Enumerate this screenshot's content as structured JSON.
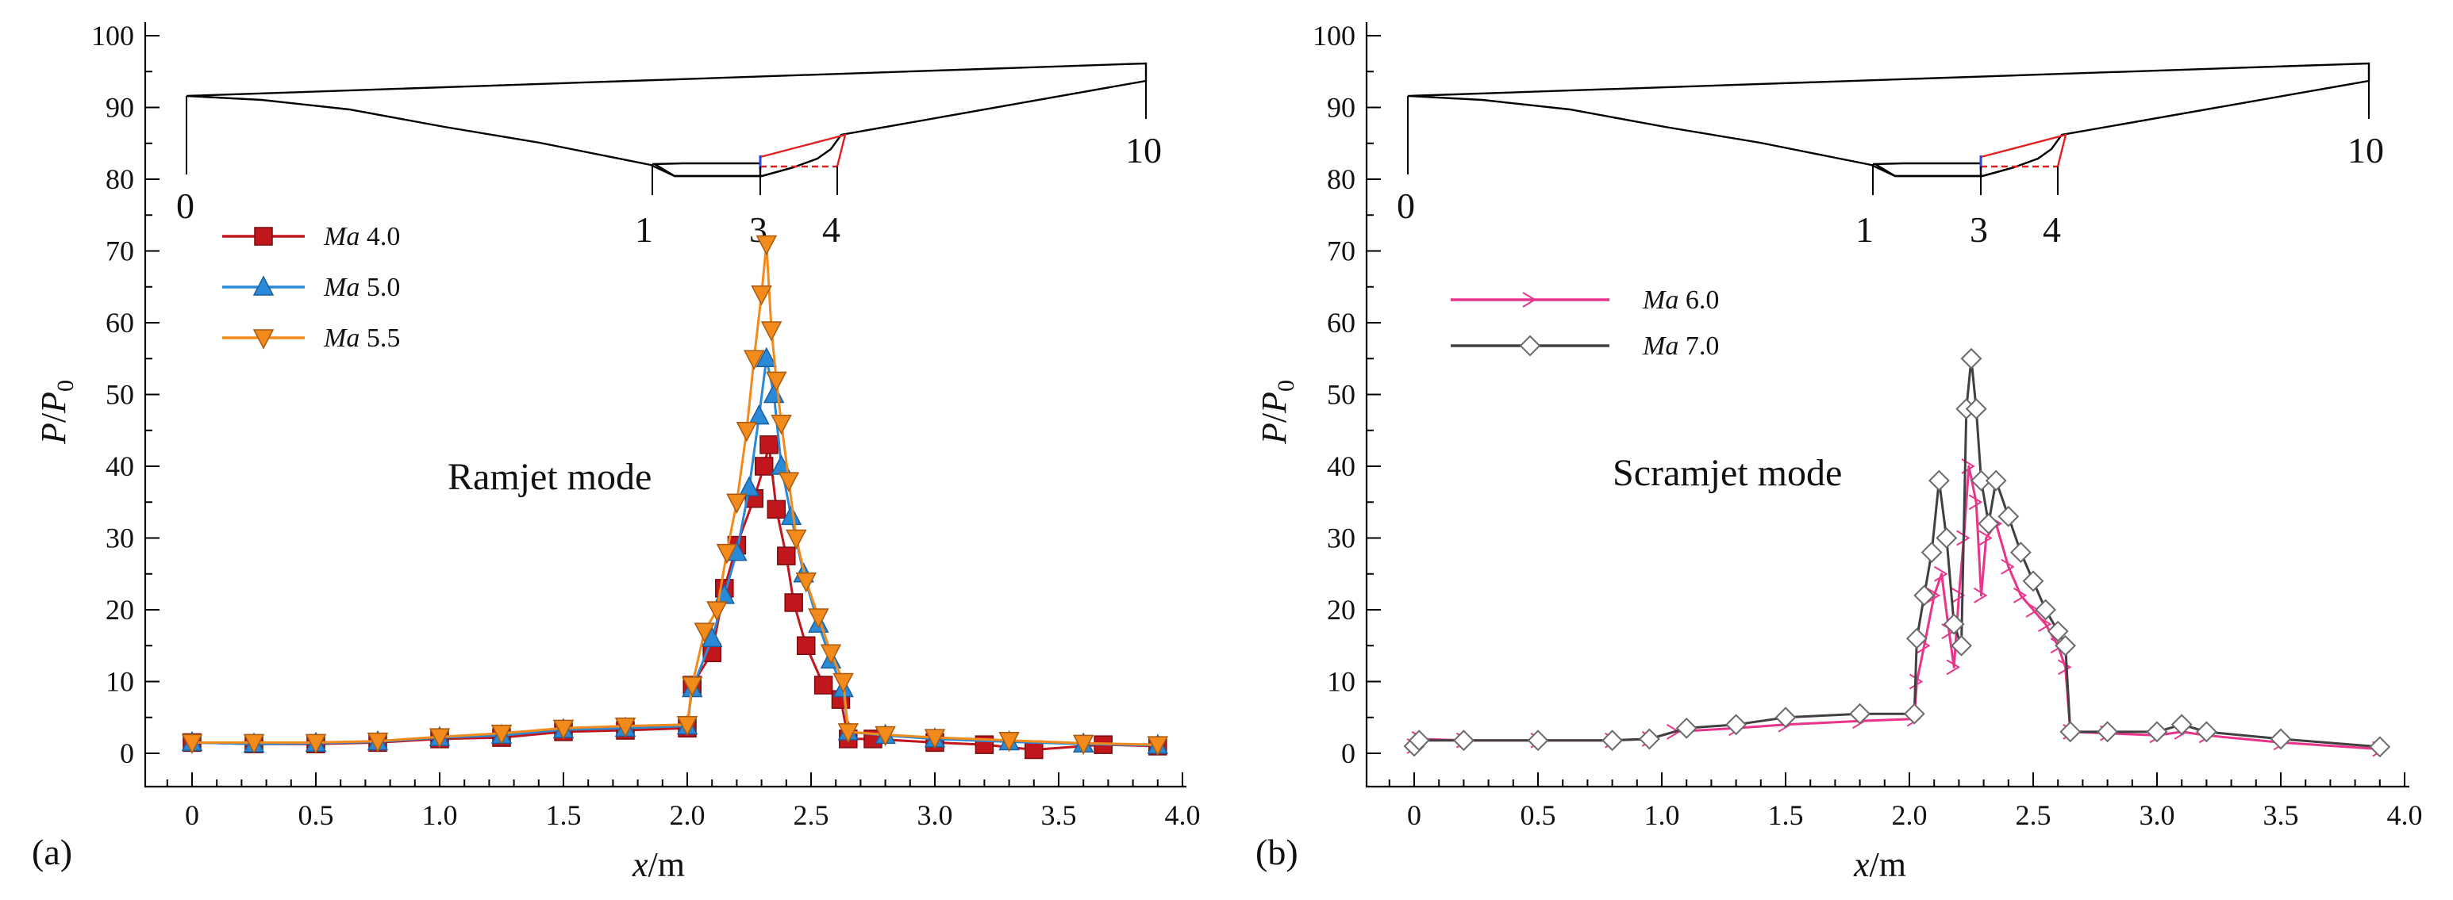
{
  "figure": {
    "panels": [
      {
        "panel_label": "(a)",
        "mode_label": "Ramjet mode",
        "xlabel_italic": "x",
        "xlabel_rest": "/m",
        "ylabel_main": "P",
        "ylabel_sep": "/",
        "ylabel_den": "P",
        "ylabel_sub": "0",
        "station_labels": [
          "0",
          "1",
          "3",
          "4",
          "10"
        ]
      },
      {
        "panel_label": "(b)",
        "mode_label": "Scramjet mode",
        "xlabel_italic": "x",
        "xlabel_rest": "/m",
        "ylabel_main": "P",
        "ylabel_sep": "/",
        "ylabel_den": "P",
        "ylabel_sub": "0",
        "station_labels": [
          "0",
          "1",
          "3",
          "4",
          "10"
        ]
      }
    ]
  },
  "chart_data": [
    {
      "type": "line",
      "title": "",
      "xlabel": "x/m",
      "ylabel": "P/P0",
      "xlim": [
        -0.2,
        4.0
      ],
      "ylim": [
        -5,
        100
      ],
      "xticks": [
        "0",
        "0.5",
        "1.0",
        "1.5",
        "2.0",
        "2.5",
        "3.0",
        "3.5",
        "4.0"
      ],
      "xtick_values": [
        0,
        0.5,
        1.0,
        1.5,
        2.0,
        2.5,
        3.0,
        3.5,
        4.0
      ],
      "yticks": [
        "0",
        "10",
        "20",
        "30",
        "40",
        "50",
        "60",
        "70",
        "80",
        "90",
        "100"
      ],
      "ytick_values": [
        0,
        10,
        20,
        30,
        40,
        50,
        60,
        70,
        80,
        90,
        100
      ],
      "series": [
        {
          "name_prefix": "Ma",
          "name_value": "4.0",
          "color": "#c0161c",
          "marker": "square",
          "points": [
            [
              0,
              1.5
            ],
            [
              0.25,
              1.3
            ],
            [
              0.5,
              1.3
            ],
            [
              0.75,
              1.5
            ],
            [
              1.0,
              2
            ],
            [
              1.25,
              2.2
            ],
            [
              1.5,
              3
            ],
            [
              1.75,
              3.2
            ],
            [
              2.0,
              3.5
            ],
            [
              2.02,
              9.5
            ],
            [
              2.1,
              14
            ],
            [
              2.15,
              23
            ],
            [
              2.2,
              29
            ],
            [
              2.27,
              35.5
            ],
            [
              2.31,
              40
            ],
            [
              2.33,
              43
            ],
            [
              2.36,
              34
            ],
            [
              2.4,
              27.5
            ],
            [
              2.43,
              21
            ],
            [
              2.48,
              15
            ],
            [
              2.55,
              9.5
            ],
            [
              2.62,
              7.5
            ],
            [
              2.65,
              2
            ],
            [
              2.75,
              2
            ],
            [
              3.0,
              1.5
            ],
            [
              3.2,
              1.2
            ],
            [
              3.4,
              0.5
            ],
            [
              3.68,
              1.2
            ],
            [
              3.9,
              1
            ]
          ]
        },
        {
          "name_prefix": "Ma",
          "name_value": "5.0",
          "color": "#2a8ad8",
          "marker": "triangle-up",
          "points": [
            [
              0,
              1.5
            ],
            [
              0.25,
              1.3
            ],
            [
              0.5,
              1.4
            ],
            [
              0.75,
              1.6
            ],
            [
              1.0,
              2.2
            ],
            [
              1.25,
              2.5
            ],
            [
              1.5,
              3.3
            ],
            [
              1.75,
              3.5
            ],
            [
              2.0,
              3.8
            ],
            [
              2.02,
              9
            ],
            [
              2.1,
              16
            ],
            [
              2.15,
              22
            ],
            [
              2.2,
              28
            ],
            [
              2.25,
              37
            ],
            [
              2.29,
              47
            ],
            [
              2.32,
              55
            ],
            [
              2.35,
              50
            ],
            [
              2.38,
              40
            ],
            [
              2.42,
              33
            ],
            [
              2.47,
              25
            ],
            [
              2.53,
              18
            ],
            [
              2.58,
              13
            ],
            [
              2.63,
              9
            ],
            [
              2.65,
              3
            ],
            [
              2.8,
              2.5
            ],
            [
              3.0,
              2
            ],
            [
              3.3,
              1.6
            ],
            [
              3.6,
              1.3
            ],
            [
              3.9,
              1.1
            ]
          ]
        },
        {
          "name_prefix": "Ma",
          "name_value": "5.5",
          "color": "#f28a1c",
          "marker": "triangle-down",
          "points": [
            [
              0,
              1.5
            ],
            [
              0.25,
              1.5
            ],
            [
              0.5,
              1.5
            ],
            [
              0.75,
              1.7
            ],
            [
              1.0,
              2.3
            ],
            [
              1.25,
              2.8
            ],
            [
              1.5,
              3.5
            ],
            [
              1.75,
              3.8
            ],
            [
              2.0,
              4
            ],
            [
              2.02,
              9.5
            ],
            [
              2.07,
              17
            ],
            [
              2.12,
              20
            ],
            [
              2.16,
              28
            ],
            [
              2.2,
              35
            ],
            [
              2.24,
              45
            ],
            [
              2.27,
              55
            ],
            [
              2.3,
              64
            ],
            [
              2.32,
              71
            ],
            [
              2.34,
              59
            ],
            [
              2.36,
              52
            ],
            [
              2.38,
              46
            ],
            [
              2.41,
              38
            ],
            [
              2.44,
              30
            ],
            [
              2.48,
              24
            ],
            [
              2.53,
              19
            ],
            [
              2.58,
              14
            ],
            [
              2.63,
              10
            ],
            [
              2.65,
              3
            ],
            [
              2.8,
              2.6
            ],
            [
              3.0,
              2.2
            ],
            [
              3.3,
              1.8
            ],
            [
              3.6,
              1.4
            ],
            [
              3.9,
              1.2
            ]
          ]
        }
      ]
    },
    {
      "type": "line",
      "title": "",
      "xlabel": "x/m",
      "ylabel": "P/P0",
      "xlim": [
        -0.2,
        4.0
      ],
      "ylim": [
        -5,
        100
      ],
      "xticks": [
        "0",
        "0.5",
        "1.0",
        "1.5",
        "2.0",
        "2.5",
        "3.0",
        "3.5",
        "4.0"
      ],
      "xtick_values": [
        0,
        0.5,
        1.0,
        1.5,
        2.0,
        2.5,
        3.0,
        3.5,
        4.0
      ],
      "yticks": [
        "0",
        "10",
        "20",
        "30",
        "40",
        "50",
        "60",
        "70",
        "80",
        "90",
        "100"
      ],
      "ytick_values": [
        0,
        10,
        20,
        30,
        40,
        50,
        60,
        70,
        80,
        90,
        100
      ],
      "series": [
        {
          "name_prefix": "Ma",
          "name_value": "6.0",
          "color": "#e8348a",
          "marker": "arrow-right",
          "points": [
            [
              0,
              1
            ],
            [
              0.02,
              2
            ],
            [
              0.2,
              1.8
            ],
            [
              0.5,
              1.8
            ],
            [
              0.8,
              1.8
            ],
            [
              0.95,
              2
            ],
            [
              1.05,
              3
            ],
            [
              1.3,
              3.5
            ],
            [
              1.5,
              4
            ],
            [
              1.8,
              4.5
            ],
            [
              2.02,
              4.8
            ],
            [
              2.03,
              10
            ],
            [
              2.06,
              15
            ],
            [
              2.1,
              22
            ],
            [
              2.13,
              25
            ],
            [
              2.16,
              17
            ],
            [
              2.18,
              12
            ],
            [
              2.2,
              22
            ],
            [
              2.22,
              30
            ],
            [
              2.24,
              40
            ],
            [
              2.27,
              35
            ],
            [
              2.29,
              22
            ],
            [
              2.31,
              30
            ],
            [
              2.35,
              32
            ],
            [
              2.4,
              26
            ],
            [
              2.45,
              22
            ],
            [
              2.5,
              20
            ],
            [
              2.55,
              18
            ],
            [
              2.6,
              15
            ],
            [
              2.63,
              12
            ],
            [
              2.65,
              3
            ],
            [
              2.8,
              2.8
            ],
            [
              3.0,
              2.5
            ],
            [
              3.1,
              3
            ],
            [
              3.2,
              2.5
            ],
            [
              3.5,
              1.5
            ],
            [
              3.9,
              0.6
            ]
          ]
        },
        {
          "name_prefix": "Ma",
          "name_value": "7.0",
          "color": "#404040",
          "marker": "diamond",
          "points": [
            [
              0,
              1
            ],
            [
              0.02,
              1.8
            ],
            [
              0.2,
              1.8
            ],
            [
              0.5,
              1.8
            ],
            [
              0.8,
              1.8
            ],
            [
              0.95,
              2
            ],
            [
              1.1,
              3.5
            ],
            [
              1.3,
              4
            ],
            [
              1.5,
              5
            ],
            [
              1.8,
              5.5
            ],
            [
              2.02,
              5.5
            ],
            [
              2.03,
              16
            ],
            [
              2.06,
              22
            ],
            [
              2.09,
              28
            ],
            [
              2.12,
              38
            ],
            [
              2.15,
              30
            ],
            [
              2.18,
              18
            ],
            [
              2.21,
              15
            ],
            [
              2.23,
              48
            ],
            [
              2.25,
              55
            ],
            [
              2.27,
              48
            ],
            [
              2.29,
              38
            ],
            [
              2.32,
              32
            ],
            [
              2.35,
              38
            ],
            [
              2.4,
              33
            ],
            [
              2.45,
              28
            ],
            [
              2.5,
              24
            ],
            [
              2.55,
              20
            ],
            [
              2.6,
              17
            ],
            [
              2.63,
              15
            ],
            [
              2.65,
              3
            ],
            [
              2.8,
              3
            ],
            [
              3.0,
              3
            ],
            [
              3.1,
              4
            ],
            [
              3.2,
              3
            ],
            [
              3.5,
              2
            ],
            [
              3.9,
              0.9
            ]
          ]
        }
      ]
    }
  ]
}
